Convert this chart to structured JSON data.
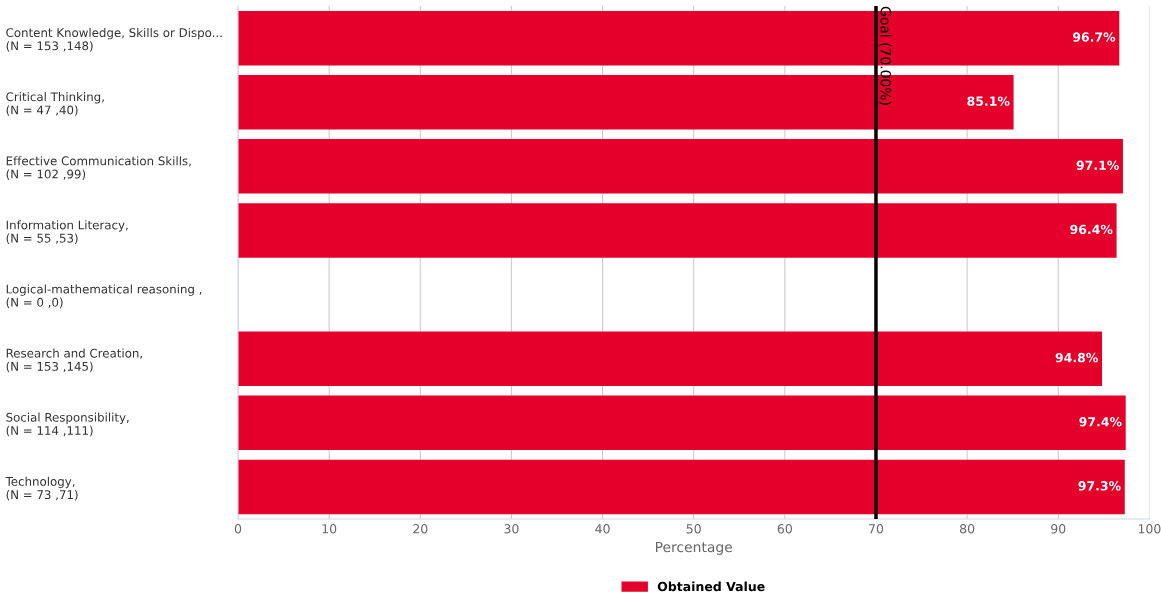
{
  "chart_data": {
    "type": "bar",
    "orientation": "horizontal",
    "categories": [
      "Content Knowledge, Skills or Dispo...\n(N = 153 ,148)",
      "Critical Thinking,\n(N = 47 ,40)",
      "Effective Communication Skills,\n(N = 102 ,99)",
      "Information Literacy,\n(N = 55 ,53)",
      "Logical-mathematical reasoning ,\n(N = 0 ,0)",
      "Research and Creation,\n(N = 153 ,145)",
      "Social Responsibility,\n(N = 114 ,111)",
      "Technology,\n(N = 73 ,71)"
    ],
    "series": [
      {
        "name": "Obtained Value",
        "color": "#e4002b",
        "values": [
          96.7,
          85.1,
          97.1,
          96.4,
          null,
          94.8,
          97.4,
          97.3
        ],
        "value_labels": [
          "96.7%",
          "85.1%",
          "97.1%",
          "96.4%",
          null,
          "94.8%",
          "97.4%",
          "97.3%"
        ]
      }
    ],
    "xlabel": "Percentage",
    "xlim": [
      0,
      100
    ],
    "xticks": [
      0,
      10,
      20,
      30,
      40,
      50,
      60,
      70,
      80,
      90,
      100
    ],
    "ref_lines": [
      {
        "axis": "x",
        "value": 70,
        "label": "Goal (70.00%)",
        "color": "#000000"
      }
    ],
    "grid": "x",
    "legend": "bottom"
  }
}
